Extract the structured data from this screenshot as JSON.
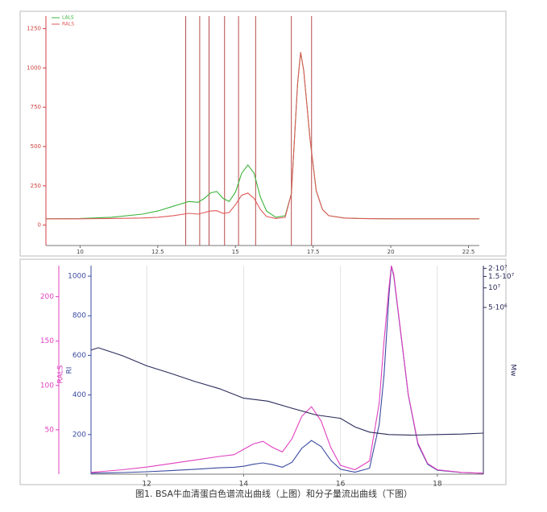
{
  "chart_data": [
    {
      "type": "line",
      "x": [
        8.9,
        10,
        11,
        12,
        12.5,
        13,
        13.5,
        13.8,
        14.0,
        14.2,
        14.4,
        14.6,
        14.8,
        15.0,
        15.2,
        15.4,
        15.6,
        15.8,
        16.0,
        16.3,
        16.6,
        16.8,
        17.0,
        17.1,
        17.2,
        17.4,
        17.6,
        17.8,
        18,
        18.5,
        19,
        20,
        21,
        22,
        22.85
      ],
      "series": [
        {
          "name": "LALS",
          "color": "#3cb43c",
          "values": [
            40,
            42,
            50,
            70,
            90,
            120,
            150,
            145,
            170,
            205,
            214,
            170,
            150,
            210,
            330,
            383,
            330,
            180,
            90,
            50,
            60,
            200,
            900,
            1100,
            980,
            550,
            220,
            100,
            60,
            45,
            42,
            40,
            40,
            40,
            40
          ]
        },
        {
          "name": "RALS",
          "color": "#e05a5a",
          "values": [
            40,
            40,
            42,
            45,
            50,
            60,
            75,
            70,
            80,
            90,
            92,
            75,
            80,
            130,
            190,
            204,
            170,
            100,
            55,
            42,
            50,
            200,
            900,
            1100,
            980,
            550,
            220,
            100,
            60,
            45,
            42,
            40,
            40,
            40,
            40
          ]
        }
      ],
      "markers": [
        13.4,
        13.85,
        14.15,
        14.65,
        15.1,
        15.65,
        16.8,
        17.45
      ],
      "xlim": [
        8.9,
        22.85
      ],
      "xticks": [
        10,
        12.5,
        15,
        17.5,
        20,
        22.5
      ],
      "ylim": [
        -130,
        1330
      ],
      "yticks": [
        0,
        250,
        500,
        750,
        1000,
        1250
      ]
    },
    {
      "type": "line",
      "x": [
        10.85,
        11.5,
        12,
        12.5,
        13,
        13.5,
        13.8,
        14.0,
        14.2,
        14.4,
        14.6,
        14.8,
        15.0,
        15.2,
        15.4,
        15.6,
        15.8,
        16.0,
        16.3,
        16.6,
        16.8,
        16.9,
        17.0,
        17.05,
        17.1,
        17.2,
        17.4,
        17.6,
        17.8,
        18,
        18.5,
        18.95
      ],
      "series": [
        {
          "name": "RI",
          "color": "#3a4aa0",
          "values": [
            5,
            8,
            12,
            18,
            25,
            32,
            35,
            40,
            50,
            57,
            48,
            35,
            60,
            130,
            170,
            140,
            70,
            25,
            10,
            30,
            250,
            500,
            900,
            1050,
            1000,
            800,
            400,
            150,
            50,
            20,
            8,
            5
          ]
        },
        {
          "name": "RALS",
          "color": "#e040c0",
          "axis": "y2",
          "values": [
            2,
            5,
            8,
            12,
            16,
            20,
            22,
            28,
            34,
            37,
            30,
            25,
            40,
            65,
            76,
            60,
            30,
            10,
            5,
            15,
            80,
            150,
            210,
            235,
            225,
            180,
            90,
            35,
            12,
            5,
            2,
            1
          ]
        },
        {
          "name": "Mw",
          "color": "#2a2a5a",
          "axis": "y3",
          "x": [
            10.85,
            11,
            11.5,
            12,
            12.5,
            13,
            13.5,
            14,
            14.5,
            15,
            15.5,
            16,
            16.3,
            16.6,
            17,
            17.5,
            18,
            18.5,
            18.95
          ],
          "values": [
            1100000,
            1200000,
            900000,
            630000,
            480000,
            360000,
            280000,
            200000,
            180000,
            140000,
            110000,
            98000,
            72000,
            60000,
            55000,
            54000,
            55000,
            56000,
            58000
          ]
        }
      ],
      "xlim": [
        10.85,
        18.95
      ],
      "xticks": [
        12,
        14,
        16,
        18
      ],
      "ylim": [
        0,
        1053
      ],
      "yticks": [
        200,
        400,
        600,
        800,
        1000
      ],
      "y2lim": [
        0,
        235
      ],
      "y2ticks": [
        50,
        100,
        150,
        200
      ],
      "y3lim": [
        13500,
        22000000
      ],
      "y3log": true,
      "y3ticks": [
        {
          "value": 20000000,
          "label": "2·10⁷"
        },
        {
          "value": 15000000,
          "label": "1.5·10⁷"
        },
        {
          "value": 10000000,
          "label": "10⁷"
        },
        {
          "value": 5000000,
          "label": "5·10⁶"
        }
      ],
      "grid": true
    },
    {
      "caption": "图1. BSA牛血清蛋白色谱流出曲线（上图）和分子量流出曲线（下图）"
    }
  ]
}
